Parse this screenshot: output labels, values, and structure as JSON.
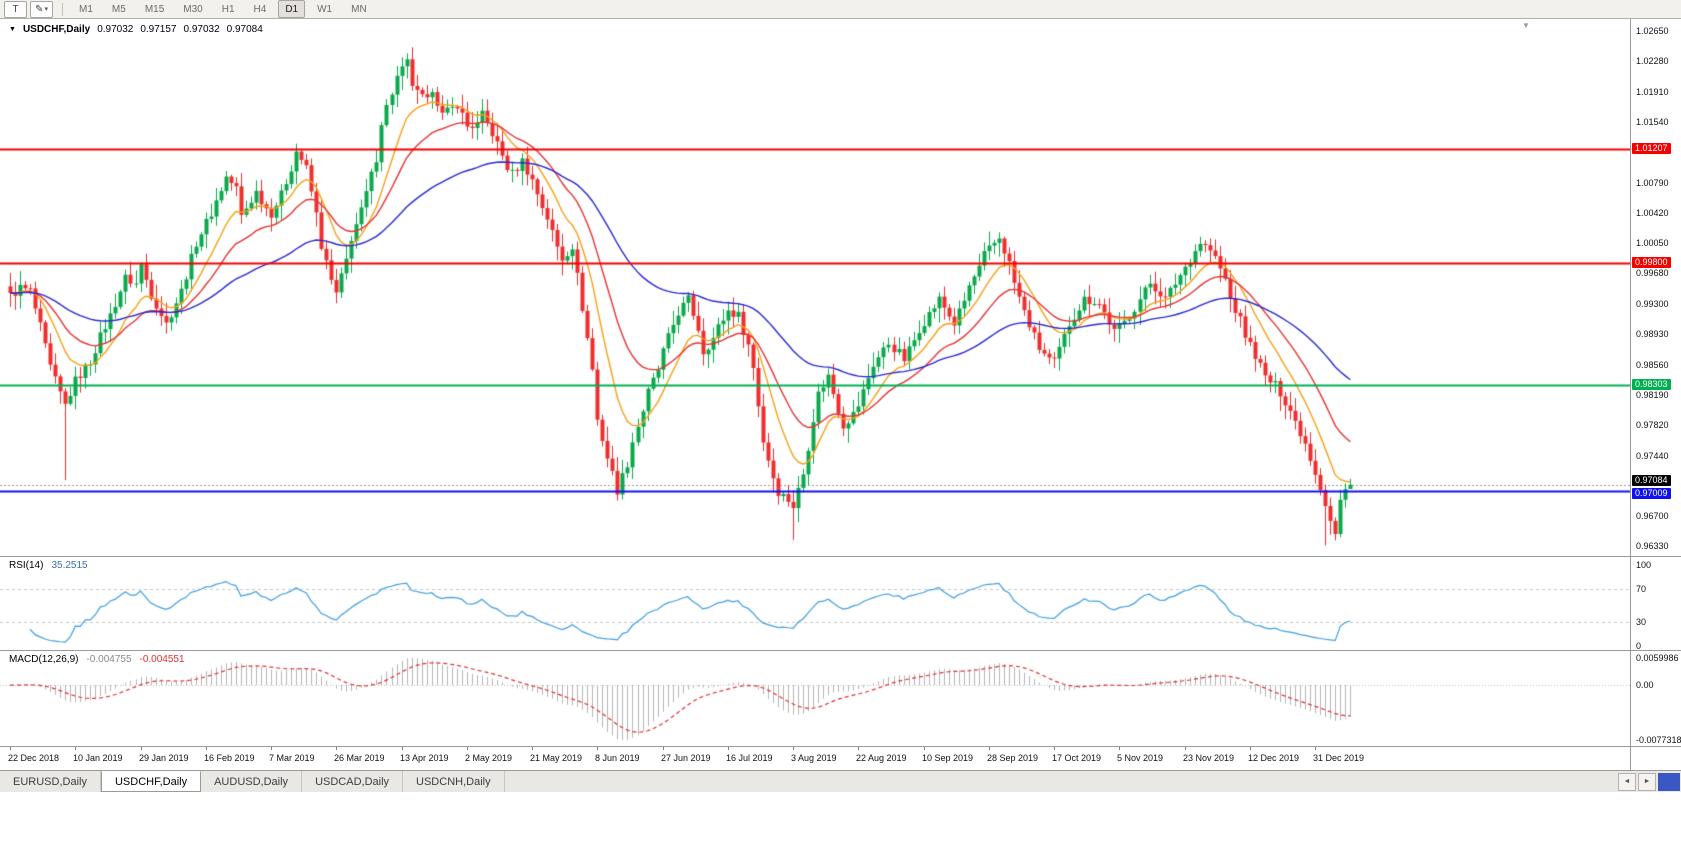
{
  "toolbar": {
    "tools": [
      {
        "name": "text-tool",
        "glyph": "T"
      },
      {
        "name": "draw-tool",
        "glyph": "✎"
      }
    ],
    "dropdown_caret": "▾",
    "timeframes": [
      "M1",
      "M5",
      "M15",
      "M30",
      "H1",
      "H4",
      "D1",
      "W1",
      "MN"
    ],
    "active_timeframe": "D1"
  },
  "chart": {
    "header": {
      "marker": "▼",
      "symbol": "USDCHF,Daily",
      "open": "0.97032",
      "high": "0.97157",
      "low": "0.97032",
      "close": "0.97084"
    },
    "price_axis_ticks": [
      "1.02650",
      "1.02280",
      "1.01910",
      "1.01540",
      "1.00790",
      "1.00420",
      "1.00050",
      "0.99680",
      "0.99300",
      "0.98930",
      "0.98560",
      "0.98190",
      "0.97820",
      "0.97440",
      "0.96700",
      "0.96330"
    ],
    "levels": [
      {
        "label": "1.01207",
        "value": 1.01207,
        "color": "#f40000",
        "badge_dy": 0
      },
      {
        "label": "0.99800",
        "value": 0.998,
        "color": "#f40000",
        "badge_dy": 0
      },
      {
        "label": "0.98303",
        "value": 0.98303,
        "color": "#00b050",
        "badge_dy": 0
      },
      {
        "label": "0.97009",
        "value": 0.97009,
        "color": "#1010f0",
        "badge_dy": 3
      }
    ],
    "current_price": {
      "label": "0.97084",
      "value": 0.97084,
      "bg": "#000000",
      "badge_dy": -4
    },
    "time_axis_labels": [
      "22 Dec 2018",
      "10 Jan 2019",
      "29 Jan 2019",
      "16 Feb 2019",
      "7 Mar 2019",
      "26 Mar 2019",
      "13 Apr 2019",
      "2 May 2019",
      "21 May 2019",
      "8 Jun 2019",
      "27 Jun 2019",
      "16 Jul 2019",
      "3 Aug 2019",
      "22 Aug 2019",
      "10 Sep 2019",
      "28 Sep 2019",
      "17 Oct 2019",
      "5 Nov 2019",
      "23 Nov 2019",
      "12 Dec 2019",
      "31 Dec 2019"
    ]
  },
  "rsi": {
    "title": "RSI(14)",
    "value": "35.2515",
    "value_color": "#3c6fb0",
    "line_color": "#3f9fdf",
    "guide_levels": [
      70,
      30
    ],
    "ticks": [
      {
        "label": "100",
        "v": 100
      },
      {
        "label": "70",
        "v": 70
      },
      {
        "label": "30",
        "v": 30
      },
      {
        "label": "0",
        "v": 0
      }
    ]
  },
  "macd": {
    "title": "MACD(12,26,9)",
    "value_main": "-0.004755",
    "value_signal": "-0.004551",
    "value_main_color": "#8a8a8a",
    "hist_color": "#b4b4b4",
    "signal_color": "#e03232",
    "tick_top": "0.0059986",
    "tick_zero": "0.00",
    "tick_bottom": "-0.0077318"
  },
  "tabs": [
    "EURUSD,Daily",
    "USDCHF,Daily",
    "AUDUSD,Daily",
    "USDCAD,Daily",
    "USDCNH,Daily"
  ],
  "active_tab": "USDCHF,Daily",
  "icons": {
    "tab_scroll_left": "◄",
    "tab_scroll_right": "►",
    "shift_marker": "▼"
  },
  "chart_data": {
    "type": "candlestick",
    "symbol": "USDCHF",
    "timeframe": "Daily",
    "count": 268,
    "y_range": [
      0.9621,
      1.028
    ],
    "x_label_indices": [
      0,
      13,
      26,
      39,
      52,
      65,
      78,
      91,
      104,
      117,
      130,
      143,
      156,
      169,
      182,
      195,
      208,
      221,
      234,
      247,
      260
    ],
    "up_color": "#0ca94c",
    "down_color": "#ef2e2e",
    "noise": 0.0012,
    "close_anchors": [
      [
        0,
        0.994
      ],
      [
        2,
        0.995
      ],
      [
        4,
        0.9946
      ],
      [
        6,
        0.9902
      ],
      [
        8,
        0.9852
      ],
      [
        10,
        0.982
      ],
      [
        11,
        0.9806
      ],
      [
        13,
        0.9836
      ],
      [
        16,
        0.986
      ],
      [
        18,
        0.989
      ],
      [
        20,
        0.9916
      ],
      [
        23,
        0.9962
      ],
      [
        25,
        0.9955
      ],
      [
        26,
        0.9978
      ],
      [
        28,
        0.9942
      ],
      [
        31,
        0.9906
      ],
      [
        34,
        0.9946
      ],
      [
        37,
        1.0006
      ],
      [
        40,
        1.0042
      ],
      [
        43,
        1.0086
      ],
      [
        45,
        1.0072
      ],
      [
        46,
        1.0038
      ],
      [
        49,
        1.0068
      ],
      [
        51,
        1.0048
      ],
      [
        52,
        1.0042
      ],
      [
        54,
        1.0064
      ],
      [
        56,
        1.0098
      ],
      [
        57,
        1.0118
      ],
      [
        58,
        1.0108
      ],
      [
        59,
        1.0096
      ],
      [
        61,
        1.004
      ],
      [
        62,
        1.0002
      ],
      [
        64,
        0.9958
      ],
      [
        65,
        0.9942
      ],
      [
        67,
        0.9984
      ],
      [
        68,
        1.0012
      ],
      [
        70,
        1.0044
      ],
      [
        71,
        1.0066
      ],
      [
        73,
        1.011
      ],
      [
        74,
        1.0154
      ],
      [
        76,
        1.019
      ],
      [
        77,
        1.0208
      ],
      [
        79,
        1.0226
      ],
      [
        80,
        1.02
      ],
      [
        81,
        1.0188
      ],
      [
        83,
        1.0178
      ],
      [
        84,
        1.0196
      ],
      [
        86,
        1.0162
      ],
      [
        88,
        1.017
      ],
      [
        89,
        1.0176
      ],
      [
        91,
        1.0148
      ],
      [
        93,
        1.015
      ],
      [
        94,
        1.0162
      ],
      [
        96,
        1.014
      ],
      [
        97,
        1.0126
      ],
      [
        99,
        1.0098
      ],
      [
        100,
        1.009
      ],
      [
        102,
        1.0106
      ],
      [
        104,
        1.0082
      ],
      [
        106,
        1.005
      ],
      [
        107,
        1.0036
      ],
      [
        109,
        1.0
      ],
      [
        110,
        0.9986
      ],
      [
        112,
        1.0002
      ],
      [
        114,
        0.9926
      ],
      [
        116,
        0.985
      ],
      [
        117,
        0.9788
      ],
      [
        119,
        0.9742
      ],
      [
        121,
        0.9702
      ],
      [
        123,
        0.9735
      ],
      [
        124,
        0.9762
      ],
      [
        126,
        0.98
      ],
      [
        127,
        0.9822
      ],
      [
        129,
        0.985
      ],
      [
        130,
        0.9872
      ],
      [
        132,
        0.9905
      ],
      [
        133,
        0.992
      ],
      [
        135,
        0.9936
      ],
      [
        137,
        0.99
      ],
      [
        138,
        0.9872
      ],
      [
        140,
        0.9888
      ],
      [
        141,
        0.9902
      ],
      [
        143,
        0.9922
      ],
      [
        145,
        0.9916
      ],
      [
        147,
        0.988
      ],
      [
        148,
        0.9852
      ],
      [
        150,
        0.9762
      ],
      [
        152,
        0.9718
      ],
      [
        153,
        0.97
      ],
      [
        155,
        0.969
      ],
      [
        156,
        0.9682
      ],
      [
        158,
        0.9722
      ],
      [
        160,
        0.979
      ],
      [
        161,
        0.982
      ],
      [
        163,
        0.9842
      ],
      [
        165,
        0.98
      ],
      [
        166,
        0.9782
      ],
      [
        168,
        0.9795
      ],
      [
        169,
        0.9806
      ],
      [
        171,
        0.984
      ],
      [
        172,
        0.9856
      ],
      [
        174,
        0.9874
      ],
      [
        175,
        0.9882
      ],
      [
        177,
        0.987
      ],
      [
        178,
        0.9862
      ],
      [
        180,
        0.9886
      ],
      [
        181,
        0.99
      ],
      [
        183,
        0.9918
      ],
      [
        185,
        0.9936
      ],
      [
        187,
        0.9916
      ],
      [
        188,
        0.9906
      ],
      [
        190,
        0.9934
      ],
      [
        191,
        0.9952
      ],
      [
        193,
        0.9974
      ],
      [
        194,
        0.999
      ],
      [
        197,
        1.0012
      ],
      [
        199,
        0.998
      ],
      [
        200,
        0.9956
      ],
      [
        202,
        0.992
      ],
      [
        204,
        0.989
      ],
      [
        205,
        0.9876
      ],
      [
        207,
        0.9862
      ],
      [
        208,
        0.9858
      ],
      [
        210,
        0.989
      ],
      [
        211,
        0.9906
      ],
      [
        213,
        0.9926
      ],
      [
        214,
        0.9936
      ],
      [
        216,
        0.9934
      ],
      [
        217,
        0.993
      ],
      [
        219,
        0.9908
      ],
      [
        220,
        0.9896
      ],
      [
        222,
        0.9908
      ],
      [
        224,
        0.9926
      ],
      [
        226,
        0.9946
      ],
      [
        227,
        0.9956
      ],
      [
        229,
        0.9944
      ],
      [
        230,
        0.9936
      ],
      [
        232,
        0.9956
      ],
      [
        233,
        0.9966
      ],
      [
        235,
        0.9986
      ],
      [
        237,
        1.0006
      ],
      [
        239,
        0.9996
      ],
      [
        240,
        0.9986
      ],
      [
        242,
        0.996
      ],
      [
        243,
        0.9936
      ],
      [
        245,
        0.991
      ],
      [
        246,
        0.9892
      ],
      [
        248,
        0.9868
      ],
      [
        250,
        0.984
      ],
      [
        252,
        0.983
      ],
      [
        253,
        0.9822
      ],
      [
        255,
        0.98
      ],
      [
        256,
        0.9786
      ],
      [
        258,
        0.976
      ],
      [
        259,
        0.9742
      ],
      [
        261,
        0.9706
      ],
      [
        263,
        0.9664
      ],
      [
        264,
        0.9648
      ],
      [
        265,
        0.969
      ],
      [
        266,
        0.9703
      ],
      [
        267,
        0.97084
      ]
    ],
    "wick_overrides": [
      [
        11,
        "low",
        0.9714
      ],
      [
        57,
        "high",
        1.0127
      ],
      [
        79,
        "high",
        1.0238
      ],
      [
        121,
        "low",
        0.9689
      ],
      [
        156,
        "low",
        0.9641
      ],
      [
        262,
        "low",
        0.9634
      ]
    ],
    "last_candle": {
      "open": 0.97032,
      "high": 0.97157,
      "low": 0.97032,
      "close": 0.97084
    },
    "moving_averages": [
      {
        "period": 10,
        "color": "#f5a018"
      },
      {
        "period": 21,
        "color": "#e43434"
      },
      {
        "period": 55,
        "color": "#2a2ad2"
      }
    ],
    "indicators": {
      "rsi_period": 14,
      "macd": [
        12,
        26,
        9
      ]
    }
  }
}
